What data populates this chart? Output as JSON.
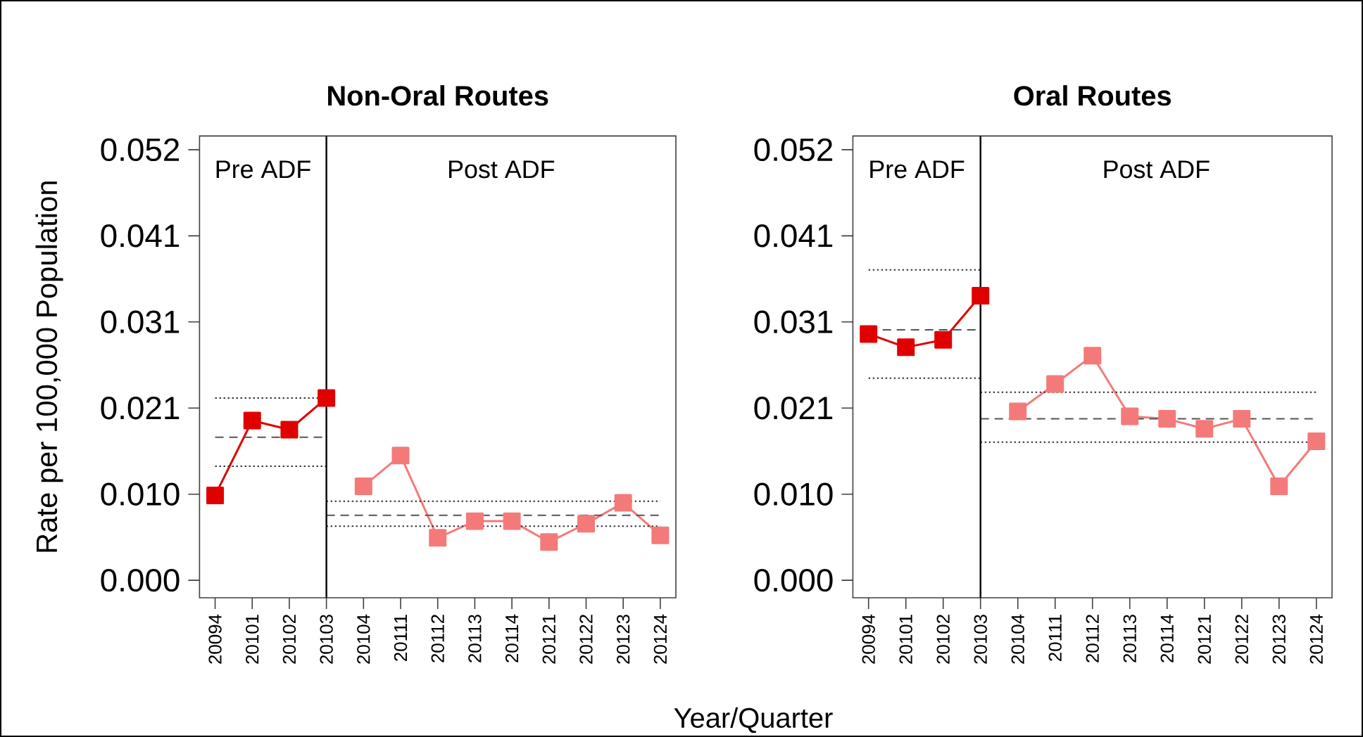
{
  "chart_data": [
    {
      "type": "line",
      "title": "Non-Oral Routes",
      "ylabel": "Rate per 100,000 Population",
      "xlabel": "Year/Quarter",
      "marker": "square",
      "line_style": "solid",
      "grid": false,
      "categories": [
        "20094",
        "20101",
        "20102",
        "20103",
        "20104",
        "20111",
        "20112",
        "20113",
        "20114",
        "20121",
        "20122",
        "20123",
        "20124"
      ],
      "ylim": [
        -0.0021,
        0.0534
      ],
      "yticks": [
        {
          "value": 0,
          "label": "0.000"
        },
        {
          "value": 0.01035,
          "label": "0.010"
        },
        {
          "value": 0.0207,
          "label": "0.021"
        },
        {
          "value": 0.03105,
          "label": "0.031"
        },
        {
          "value": 0.0414,
          "label": "0.041"
        },
        {
          "value": 0.05175,
          "label": "0.052"
        }
      ],
      "ref_lines": [
        {
          "axis": "x",
          "value": "20103",
          "color": "#000000"
        }
      ],
      "annotations": [
        "Pre ADF",
        "Post ADF"
      ],
      "series": [
        {
          "color": "#e00000",
          "values": [
            0.0102,
            0.0192,
            0.0181,
            0.0219,
            null,
            null,
            null,
            null,
            null,
            null,
            null,
            null,
            null
          ]
        },
        {
          "color": "#f47a7a",
          "values": [
            null,
            null,
            null,
            null,
            0.0113,
            0.015,
            0.0051,
            0.0071,
            0.0071,
            0.0046,
            0.0068,
            0.0093,
            0.0054
          ]
        },
        {
          "color": "#333333",
          "marker": "none",
          "line_style": "dotted",
          "x": [
            "20094",
            "20103"
          ],
          "values": [
            0.0219,
            0.0219
          ]
        },
        {
          "color": "#555555",
          "marker": "none",
          "line_style": "dashed",
          "x": [
            "20094",
            "20103"
          ],
          "values": [
            0.0172,
            0.0172
          ]
        },
        {
          "color": "#333333",
          "marker": "none",
          "line_style": "dotted",
          "x": [
            "20094",
            "20103"
          ],
          "values": [
            0.0137,
            0.0137
          ]
        },
        {
          "color": "#333333",
          "marker": "none",
          "line_style": "dotted",
          "x": [
            "20103",
            "20124"
          ],
          "values": [
            0.0095,
            0.0095
          ]
        },
        {
          "color": "#555555",
          "marker": "none",
          "line_style": "dashed",
          "x": [
            "20103",
            "20124"
          ],
          "values": [
            0.0078,
            0.0078
          ]
        },
        {
          "color": "#333333",
          "marker": "none",
          "line_style": "dotted",
          "x": [
            "20103",
            "20124"
          ],
          "values": [
            0.0065,
            0.0065
          ]
        }
      ]
    },
    {
      "type": "line",
      "title": "Oral Routes",
      "marker": "square",
      "line_style": "solid",
      "grid": false,
      "categories": [
        "20094",
        "20101",
        "20102",
        "20103",
        "20104",
        "20111",
        "20112",
        "20113",
        "20114",
        "20121",
        "20122",
        "20123",
        "20124"
      ],
      "ylim": [
        -0.0021,
        0.0534
      ],
      "yticks": [
        {
          "value": 0,
          "label": "0.000"
        },
        {
          "value": 0.01035,
          "label": "0.010"
        },
        {
          "value": 0.0207,
          "label": "0.021"
        },
        {
          "value": 0.03105,
          "label": "0.031"
        },
        {
          "value": 0.0414,
          "label": "0.041"
        },
        {
          "value": 0.05175,
          "label": "0.052"
        }
      ],
      "ref_lines": [
        {
          "axis": "x",
          "value": "20103",
          "color": "#000000"
        }
      ],
      "annotations": [
        "Pre ADF",
        "Post ADF"
      ],
      "series": [
        {
          "color": "#e00000",
          "values": [
            0.0296,
            0.028,
            0.0289,
            0.0342,
            null,
            null,
            null,
            null,
            null,
            null,
            null,
            null,
            null
          ]
        },
        {
          "color": "#f47a7a",
          "values": [
            null,
            null,
            null,
            null,
            0.0203,
            0.0236,
            0.027,
            0.0197,
            0.0194,
            0.0182,
            0.0194,
            0.0113,
            0.0167
          ]
        },
        {
          "color": "#333333",
          "marker": "none",
          "line_style": "dotted",
          "x": [
            "20094",
            "20103"
          ],
          "values": [
            0.0373,
            0.0373
          ]
        },
        {
          "color": "#555555",
          "marker": "none",
          "line_style": "dashed",
          "x": [
            "20094",
            "20103"
          ],
          "values": [
            0.0301,
            0.0301
          ]
        },
        {
          "color": "#333333",
          "marker": "none",
          "line_style": "dotted",
          "x": [
            "20094",
            "20103"
          ],
          "values": [
            0.0243,
            0.0243
          ]
        },
        {
          "color": "#333333",
          "marker": "none",
          "line_style": "dotted",
          "x": [
            "20103",
            "20124"
          ],
          "values": [
            0.0226,
            0.0226
          ]
        },
        {
          "color": "#555555",
          "marker": "none",
          "line_style": "dashed",
          "x": [
            "20103",
            "20124"
          ],
          "values": [
            0.0194,
            0.0194
          ]
        },
        {
          "color": "#333333",
          "marker": "none",
          "line_style": "dotted",
          "x": [
            "20103",
            "20124"
          ],
          "values": [
            0.0166,
            0.0166
          ]
        }
      ]
    }
  ]
}
